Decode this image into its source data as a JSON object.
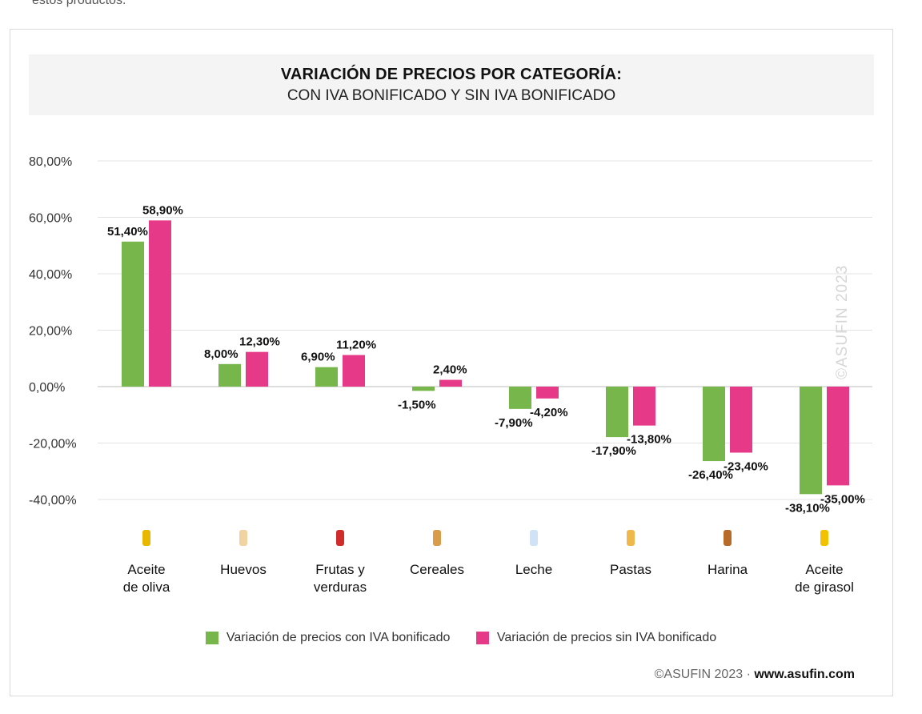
{
  "intro_fragment": "estos productos.",
  "chart_data": {
    "type": "bar",
    "title": "VARIACIÓN DE PRECIOS POR CATEGORÍA:",
    "subtitle": "CON IVA BONIFICADO Y SIN IVA BONIFICADO",
    "categories": [
      [
        "Aceite",
        "de oliva"
      ],
      [
        "Huevos"
      ],
      [
        "Frutas y",
        "verduras"
      ],
      [
        "Cereales"
      ],
      [
        "Leche"
      ],
      [
        "Pastas"
      ],
      [
        "Harina"
      ],
      [
        "Aceite",
        "de girasol"
      ]
    ],
    "series": [
      {
        "name": "Variación de precios con IVA bonificado",
        "color": "#76b64a",
        "values": [
          51.4,
          8.0,
          6.9,
          -1.5,
          -7.9,
          -17.9,
          -26.4,
          -38.1
        ],
        "labels": [
          "51,40%",
          "8,00%",
          "6,90%",
          "-1,50%",
          "-7,90%",
          "-17,90%",
          "-26,40%",
          "-38,10%"
        ]
      },
      {
        "name": "Variación de precios sin IVA bonificado",
        "color": "#e63988",
        "values": [
          58.9,
          12.3,
          11.2,
          2.4,
          -4.2,
          -13.8,
          -23.4,
          -35.0
        ],
        "labels": [
          "58,90%",
          "12,30%",
          "11,20%",
          "2,40%",
          "-4,20%",
          "-13,80%",
          "-23,40%",
          "-35,00%"
        ]
      }
    ],
    "yticks": [
      80,
      60,
      40,
      20,
      0,
      -20,
      -40
    ],
    "ytick_labels": [
      "80,00%",
      "60,00%",
      "40,00%",
      "20,00%",
      "0,00%",
      "-20,00%",
      "-40,00%"
    ],
    "ylim": [
      -40,
      80
    ],
    "icons": [
      "oil-bottle-icon",
      "eggs-icon",
      "fruit-vegetable-icon",
      "cereal-icon",
      "milk-bottle-icon",
      "pasta-icon",
      "flour-bag-icon",
      "sunflower-oil-icon"
    ]
  },
  "watermark": "©ASUFIN 2023",
  "credit": {
    "prefix": "©ASUFIN 2023 · ",
    "site": "www.asufin.com"
  },
  "colors": {
    "green": "#76b64a",
    "pink": "#e63988"
  }
}
